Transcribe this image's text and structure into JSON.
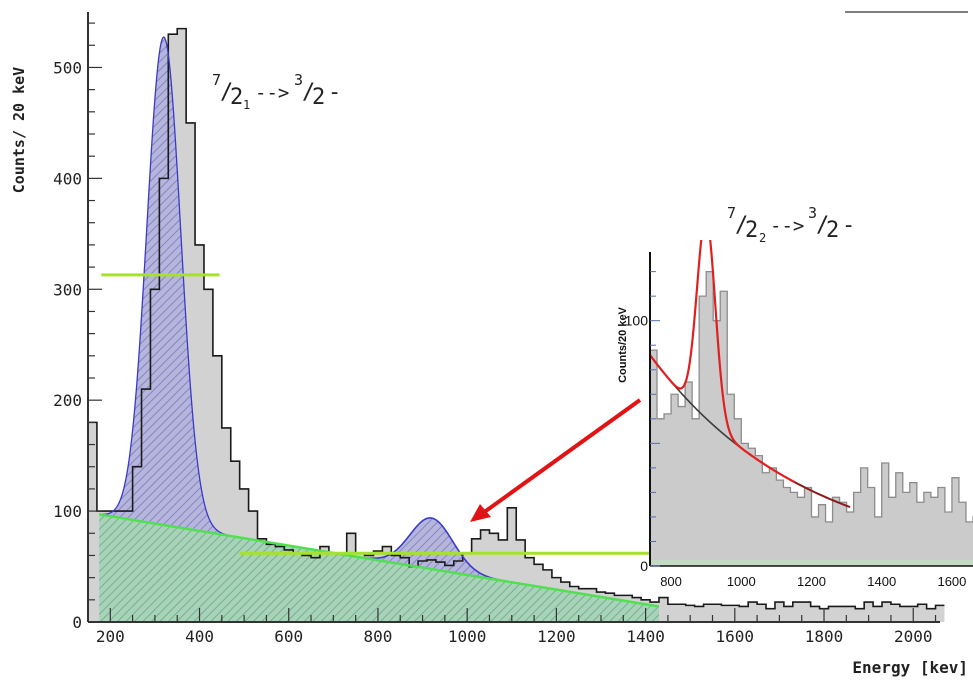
{
  "chart_data": [
    {
      "type": "bar",
      "panel": "main",
      "ylabel": "Counts/ 20 keV",
      "xlabel": "Energy [kev]",
      "annotation": {
        "pre_sup": "7",
        "j_sub": "1",
        "arrow": "-->",
        "final_sup": "3",
        "final": "2",
        "parity": "-"
      },
      "xlim": [
        150,
        2060
      ],
      "ylim": [
        0,
        550
      ],
      "x_ticks": [
        200,
        400,
        600,
        800,
        1000,
        1200,
        1400,
        1600,
        1800,
        2000
      ],
      "y_ticks": [
        0,
        100,
        200,
        300,
        400,
        500
      ],
      "grid": false,
      "histogram": {
        "bin_width": 20,
        "bin_start": 150,
        "values": [
          180,
          100,
          100,
          100,
          100,
          140,
          210,
          300,
          400,
          530,
          535,
          450,
          340,
          300,
          240,
          175,
          145,
          120,
          100,
          75,
          70,
          68,
          65,
          62,
          60,
          58,
          68,
          62,
          62,
          80,
          62,
          60,
          64,
          68,
          60,
          58,
          50,
          55,
          56,
          54,
          51,
          55,
          62,
          75,
          83,
          80,
          74,
          103,
          74,
          58,
          52,
          47,
          40,
          36,
          32,
          30,
          30,
          27,
          26,
          24,
          24,
          22,
          20,
          18,
          22,
          16,
          16,
          15,
          14,
          16,
          16,
          15,
          15,
          14,
          18,
          16,
          12,
          18,
          14,
          18,
          18,
          14,
          12,
          14,
          14,
          14,
          12,
          18,
          14,
          18,
          16,
          14,
          14,
          16,
          12,
          15
        ]
      },
      "gaussian_fit_1": {
        "center": 320,
        "sigma": 38,
        "amplitude": 440
      },
      "gaussian_fit_2": {
        "center": 920,
        "sigma": 48,
        "amplitude": 46
      },
      "background_line": {
        "x": [
          175,
          1430
        ],
        "y": [
          97,
          14
        ]
      },
      "hline_1": {
        "x": [
          180,
          445
        ],
        "y": 313
      },
      "hline_2": {
        "x": [
          490,
          1430
        ],
        "y": 62
      }
    },
    {
      "type": "bar",
      "panel": "inset",
      "ylabel": "Counts/20 keV",
      "annotation": {
        "pre_sup": "7",
        "j_sub": "2",
        "arrow": "-->",
        "final_sup": "3",
        "final": "2",
        "parity": "-"
      },
      "xlim": [
        740,
        1660
      ],
      "ylim": [
        0,
        128
      ],
      "x_ticks": [
        800,
        1000,
        1200,
        1400,
        1600
      ],
      "y_ticks": [
        0,
        100
      ],
      "grid": false,
      "histogram": {
        "bin_width": 20,
        "bin_start": 740,
        "values": [
          88,
          60,
          62,
          70,
          65,
          75,
          60,
          110,
          120,
          100,
          112,
          70,
          60,
          50,
          48,
          45,
          38,
          40,
          35,
          32,
          30,
          28,
          32,
          20,
          25,
          18,
          28,
          26,
          22,
          30,
          40,
          32,
          20,
          42,
          28,
          38,
          30,
          34,
          26,
          30,
          28,
          32,
          22,
          36,
          26,
          18,
          20,
          12,
          16,
          22
        ]
      },
      "fit_peak": {
        "center": 900,
        "sigma": 26,
        "amplitude": 82
      },
      "background_fit": {
        "x0": 740,
        "y0": 86,
        "x1": 1310,
        "y1": 24
      }
    }
  ]
}
